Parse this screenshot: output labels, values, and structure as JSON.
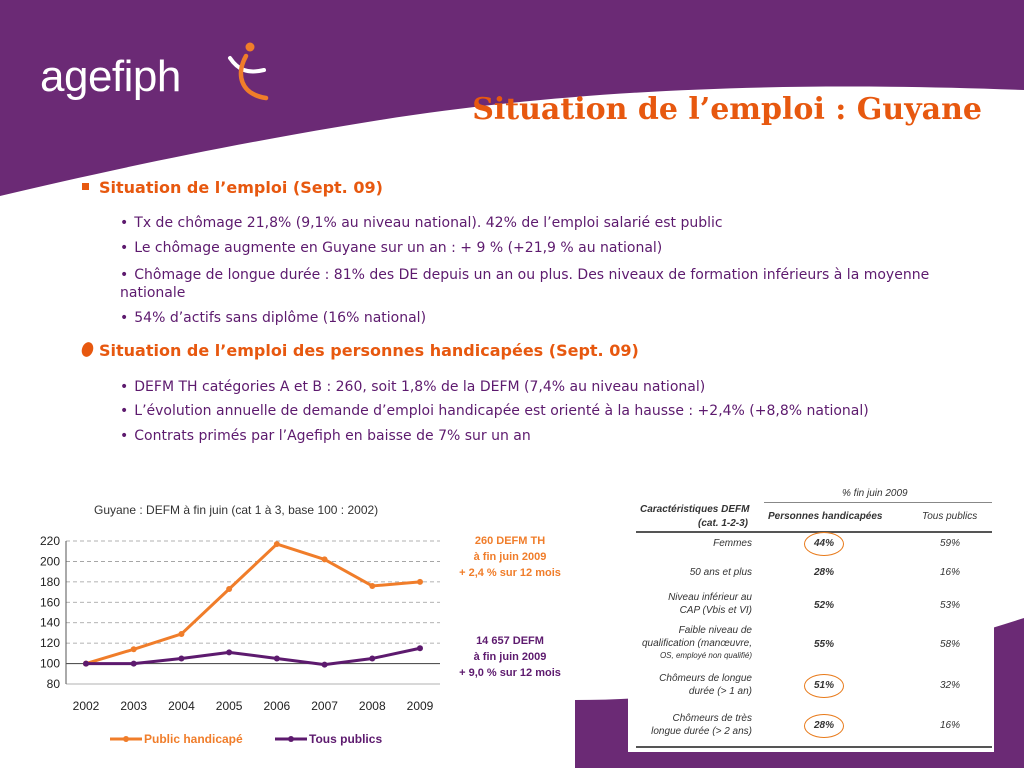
{
  "header": {
    "logo_text": "agefiph",
    "title": "Situation de l’emploi : Guyane"
  },
  "section1": {
    "heading": "Situation de l’emploi (Sept. 09)",
    "items": [
      "Tx de chômage 21,8%  (9,1% au niveau national). 42% de l’emploi salarié est public",
      "Le chômage augmente en Guyane sur un an : + 9 % (+21,9 % au national)",
      "Chômage de longue durée : 81% des DE depuis un an ou plus. Des niveaux de formation inférieurs à la moyenne",
      "nationale",
      "54% d’actifs sans diplôme (16% national)"
    ]
  },
  "section2": {
    "heading": "Situation de l’emploi des personnes handicapées (Sept. 09)",
    "items": [
      "DEFM TH catégories A et B : 260, soit 1,8% de la DEFM (7,4% au niveau national)",
      "L’évolution annuelle de demande d’emploi handicapée est orienté à la hausse : +2,4% (+8,8% national)",
      "Contrats primés par l’Agefiph en baisse de 7% sur un an"
    ]
  },
  "chart_data": {
    "type": "line",
    "title": "Guyane : DEFM à fin juin (cat 1 à 3, base 100 : 2002)",
    "categories": [
      "2002",
      "2003",
      "2004",
      "2005",
      "2006",
      "2007",
      "2008",
      "2009"
    ],
    "ylim": [
      80,
      220
    ],
    "yticks": [
      "80",
      "100",
      "120",
      "140",
      "160",
      "180",
      "200",
      "220"
    ],
    "grid": true,
    "legend_position": "bottom",
    "series": [
      {
        "name": "Public handicapé",
        "color": "#f07d2a",
        "values": [
          100,
          114,
          129,
          173,
          217,
          202,
          176,
          180
        ]
      },
      {
        "name": "Tous publics",
        "color": "#5d1a6e",
        "values": [
          100,
          100,
          105,
          111,
          105,
          99,
          105,
          115
        ]
      }
    ],
    "annotations": [
      {
        "lines": [
          "260 DEFM TH",
          "à fin juin 2009",
          "+ 2,4 % sur 12 mois"
        ],
        "color": "#f07d2a"
      },
      {
        "lines": [
          "14 657 DEFM",
          "à fin juin 2009",
          "+ 9,0 % sur 12 mois"
        ],
        "color": "#5d1a6e"
      }
    ]
  },
  "table": {
    "period": "% fin juin 2009",
    "col_header_1": "Caractéristiques DEFM",
    "col_header_1b": "(cat. 1-2-3)",
    "col_header_2": "Personnes handicapées",
    "col_header_3": "Tous publics",
    "rows": [
      {
        "label": [
          "Femmes"
        ],
        "ph": "44%",
        "tp": "59%"
      },
      {
        "label": [
          "50 ans et plus"
        ],
        "ph": "28%",
        "tp": "16%"
      },
      {
        "label": [
          "Niveau inférieur au",
          "CAP",
          "(Vbis et VI)"
        ],
        "ph": "52%",
        "tp": "53%"
      },
      {
        "label": [
          "Faible niveau de",
          "qualification",
          "(manœuvre,",
          "OS, employé non qualifié)"
        ],
        "ph": "55%",
        "tp": "58%"
      },
      {
        "label": [
          "Chômeurs de longue",
          "durée (> 1 an)"
        ],
        "ph": "51%",
        "tp": "32%"
      },
      {
        "label": [
          "Chômeurs de très",
          "longue durée (> 2 ans)"
        ],
        "ph": "28%",
        "tp": "16%"
      }
    ]
  },
  "colors": {
    "purple": "#6b2a75",
    "orange": "#e7580f",
    "text_purple": "#5d1a6e"
  }
}
